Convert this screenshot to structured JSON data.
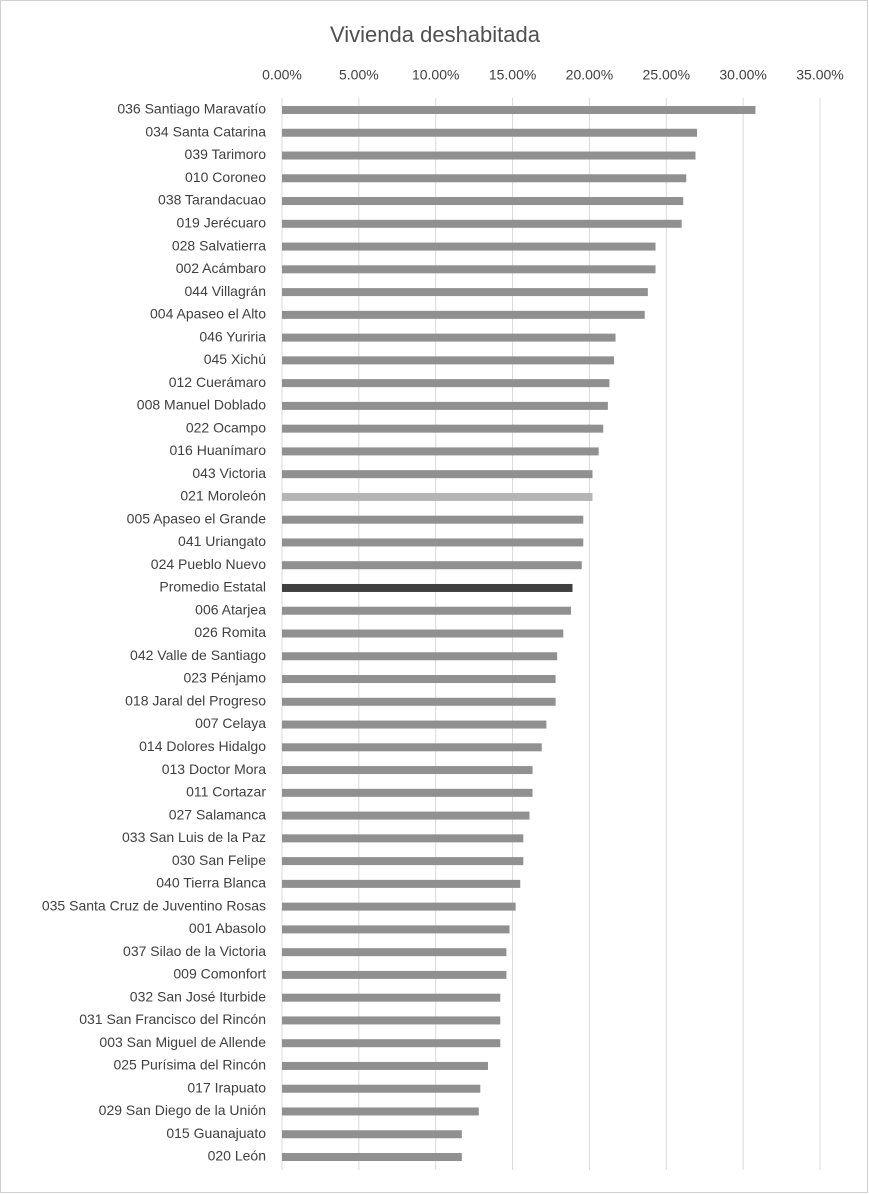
{
  "chart_data": {
    "type": "barh",
    "title": "Vivienda deshabitada",
    "categories": [
      "036 Santiago Maravatío",
      "034 Santa Catarina",
      "039 Tarimoro",
      "010 Coroneo",
      "038 Tarandacuao",
      "019 Jerécuaro",
      "028 Salvatierra",
      "002 Acámbaro",
      "044 Villagrán",
      "004 Apaseo el Alto",
      "046 Yuriria",
      "045 Xichú",
      "012 Cuerámaro",
      "008 Manuel Doblado",
      "022 Ocampo",
      "016 Huanímaro",
      "043 Victoria",
      "021 Moroleón",
      "005 Apaseo el Grande",
      "041 Uriangato",
      "024 Pueblo Nuevo",
      "Promedio Estatal",
      "006 Atarjea",
      "026 Romita",
      "042 Valle de Santiago",
      "023 Pénjamo",
      "018 Jaral del Progreso",
      "007 Celaya",
      "014 Dolores Hidalgo",
      "013 Doctor Mora",
      "011 Cortazar",
      "027 Salamanca",
      "033 San Luis de la Paz",
      "030 San Felipe",
      "040 Tierra Blanca",
      "035 Santa Cruz de Juventino Rosas",
      "001 Abasolo",
      "037 Silao de la Victoria",
      "009 Comonfort",
      "032 San José Iturbide",
      "031 San Francisco del Rincón",
      "003 San Miguel de Allende",
      "025 Purísima del Rincón",
      "017 Irapuato",
      "029 San Diego de la Unión",
      "015 Guanajuato",
      "020 León"
    ],
    "values": [
      30.8,
      27.0,
      26.9,
      26.3,
      26.1,
      26.0,
      24.3,
      24.3,
      23.8,
      23.6,
      21.7,
      21.6,
      21.3,
      21.2,
      20.9,
      20.6,
      20.2,
      20.2,
      19.6,
      19.6,
      19.5,
      18.9,
      18.8,
      18.3,
      17.9,
      17.8,
      17.8,
      17.2,
      16.9,
      16.3,
      16.3,
      16.1,
      15.7,
      15.7,
      15.5,
      15.2,
      14.8,
      14.6,
      14.6,
      14.2,
      14.2,
      14.2,
      13.4,
      12.9,
      12.8,
      11.7,
      11.7
    ],
    "colors": [
      "#909090",
      "#909090",
      "#909090",
      "#909090",
      "#909090",
      "#909090",
      "#909090",
      "#909090",
      "#909090",
      "#909090",
      "#909090",
      "#909090",
      "#909090",
      "#909090",
      "#909090",
      "#909090",
      "#909090",
      "#b5b5b5",
      "#909090",
      "#909090",
      "#909090",
      "#404040",
      "#909090",
      "#909090",
      "#909090",
      "#909090",
      "#909090",
      "#909090",
      "#909090",
      "#909090",
      "#909090",
      "#909090",
      "#909090",
      "#909090",
      "#909090",
      "#909090",
      "#909090",
      "#909090",
      "#909090",
      "#909090",
      "#909090",
      "#909090",
      "#909090",
      "#909090",
      "#909090",
      "#909090",
      "#909090"
    ],
    "xlim": [
      0,
      35
    ],
    "xticks": [
      {
        "value": 0,
        "label": "0.00%"
      },
      {
        "value": 5,
        "label": "5.00%"
      },
      {
        "value": 10,
        "label": "10.00%"
      },
      {
        "value": 15,
        "label": "15.00%"
      },
      {
        "value": 20,
        "label": "20.00%"
      },
      {
        "value": 25,
        "label": "25.00%"
      },
      {
        "value": 30,
        "label": "30.00%"
      },
      {
        "value": 35,
        "label": "35.00%"
      }
    ],
    "grid": true
  }
}
